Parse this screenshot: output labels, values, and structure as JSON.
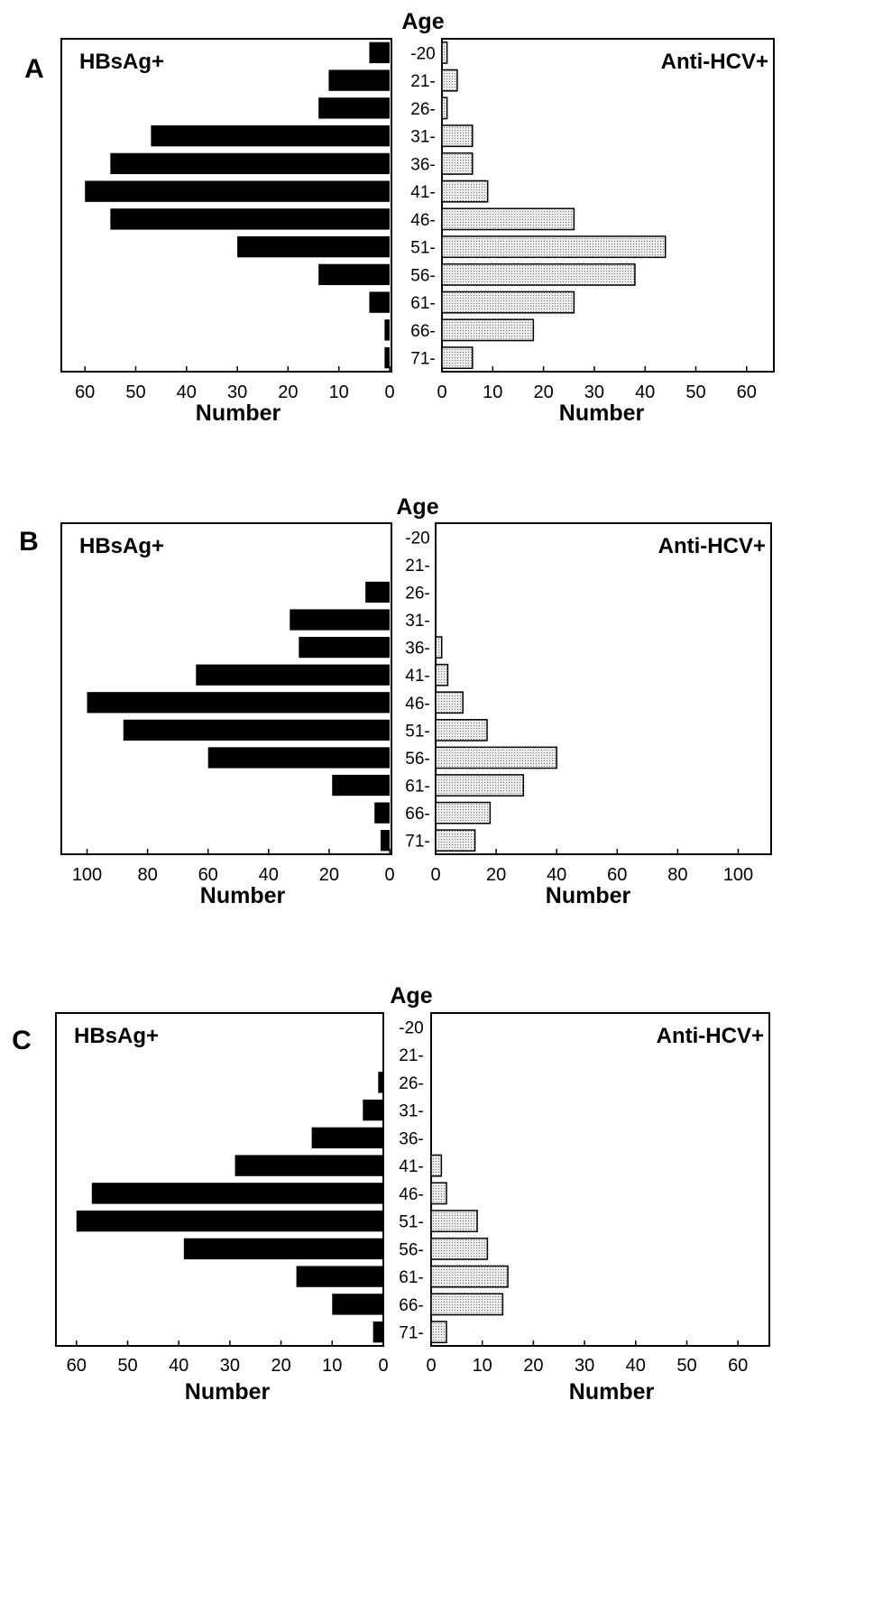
{
  "chart_data": [
    {
      "type": "bar",
      "panel_label": "A",
      "category_axis_label": "Age",
      "categories": [
        "-20",
        "21-",
        "26-",
        "31-",
        "36-",
        "41-",
        "46-",
        "51-",
        "56-",
        "61-",
        "66-",
        "71-"
      ],
      "series": [
        {
          "name": "HBsAg+",
          "color": "#000000",
          "values": [
            4,
            12,
            14,
            47,
            55,
            60,
            55,
            30,
            14,
            4,
            1,
            1
          ]
        },
        {
          "name": "Anti-HCV+",
          "color": "#d8d8d8",
          "values": [
            1,
            3,
            1,
            6,
            6,
            9,
            26,
            44,
            38,
            26,
            18,
            6
          ]
        }
      ],
      "left_xlabel": "Number",
      "right_xlabel": "Number",
      "xlim": [
        0,
        65
      ],
      "left_ticks": [
        "60",
        "50",
        "40",
        "30",
        "20",
        "10",
        "0"
      ],
      "right_ticks": [
        "0",
        "10",
        "20",
        "30",
        "40",
        "50",
        "60"
      ],
      "tick_values": [
        0,
        10,
        20,
        30,
        40,
        50,
        60
      ]
    },
    {
      "type": "bar",
      "panel_label": "B",
      "category_axis_label": "Age",
      "categories": [
        "-20",
        "21-",
        "26-",
        "31-",
        "36-",
        "41-",
        "46-",
        "51-",
        "56-",
        "61-",
        "66-",
        "71-"
      ],
      "series": [
        {
          "name": "HBsAg+",
          "color": "#000000",
          "values": [
            0,
            0,
            8,
            33,
            30,
            64,
            100,
            88,
            60,
            19,
            5,
            3
          ]
        },
        {
          "name": "Anti-HCV+",
          "color": "#d8d8d8",
          "values": [
            0,
            0,
            0,
            0,
            2,
            4,
            9,
            17,
            40,
            29,
            18,
            13
          ]
        }
      ],
      "left_xlabel": "Number",
      "right_xlabel": "Number",
      "xlim": [
        0,
        110
      ],
      "left_ticks": [
        "100",
        "80",
        "60",
        "40",
        "20",
        "0"
      ],
      "right_ticks": [
        "0",
        "20",
        "40",
        "60",
        "80",
        "100"
      ],
      "tick_values": [
        0,
        20,
        40,
        60,
        80,
        100
      ]
    },
    {
      "type": "bar",
      "panel_label": "C",
      "category_axis_label": "Age",
      "categories": [
        "-20",
        "21-",
        "26-",
        "31-",
        "36-",
        "41-",
        "46-",
        "51-",
        "56-",
        "61-",
        "66-",
        "71-"
      ],
      "series": [
        {
          "name": "HBsAg+",
          "color": "#000000",
          "values": [
            0,
            0,
            1,
            4,
            14,
            29,
            57,
            60,
            39,
            17,
            10,
            2
          ]
        },
        {
          "name": "Anti-HCV+",
          "color": "#d8d8d8",
          "values": [
            0,
            0,
            0,
            0,
            0,
            2,
            3,
            9,
            11,
            15,
            14,
            3
          ]
        }
      ],
      "left_xlabel": "Number",
      "right_xlabel": "Number",
      "xlim": [
        0,
        65
      ],
      "left_ticks": [
        "60",
        "50",
        "40",
        "30",
        "20",
        "10",
        "0"
      ],
      "right_ticks": [
        "0",
        "10",
        "20",
        "30",
        "40",
        "50",
        "60"
      ],
      "tick_values": [
        0,
        10,
        20,
        30,
        40,
        50,
        60
      ]
    }
  ]
}
